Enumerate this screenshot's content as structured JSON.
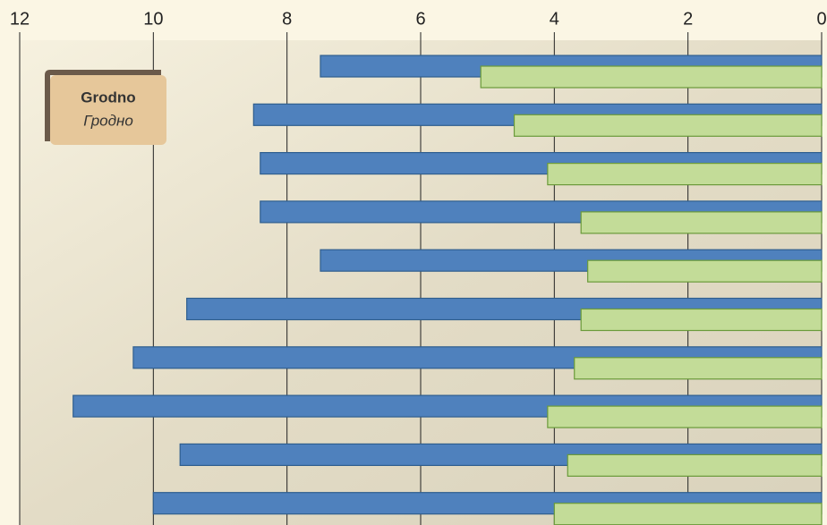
{
  "chart_data": {
    "type": "hbar",
    "annotations": [
      "Grodno",
      "Гродно"
    ],
    "categories": [
      null,
      null,
      null,
      null,
      null,
      null,
      null,
      null,
      null,
      null
    ],
    "series": [
      {
        "color": "#4f81bd",
        "values": [
          7.5,
          8.5,
          8.4,
          8.4,
          7.5,
          9.5,
          10.3,
          11.2,
          9.6,
          10.0
        ]
      },
      {
        "color": "#c3dc98",
        "values": [
          5.1,
          4.6,
          4.1,
          3.6,
          3.5,
          3.6,
          3.7,
          4.1,
          3.8,
          4.0
        ]
      }
    ],
    "xlim": [
      12,
      0
    ],
    "xticks": [
      12,
      10,
      8,
      6,
      4,
      2,
      0
    ],
    "grid": true
  }
}
